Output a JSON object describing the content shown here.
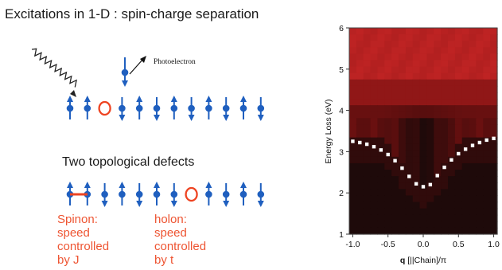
{
  "title": "Excitations in 1-D : spin-charge separation",
  "photo_label": "Photoelectron",
  "subtitle": "Two topological defects",
  "spinon_label": [
    "Spinon:",
    "speed",
    "controlled",
    "by J"
  ],
  "holon_label": [
    "holon:",
    "speed",
    "controlled",
    "by t"
  ],
  "colors": {
    "spin": "#1f5fbf",
    "defect": "#ee4422",
    "text_red": "#ee5533"
  },
  "chain_top": [
    "up",
    "up",
    "hole",
    "down",
    "up",
    "down",
    "up",
    "down",
    "up",
    "down",
    "up",
    "down"
  ],
  "chain_bottom": [
    "up",
    "up",
    "down",
    "up",
    "down",
    "up",
    "down",
    "hole",
    "up",
    "down",
    "up",
    "down"
  ],
  "chart_data": {
    "type": "heatmap",
    "title": "",
    "xlabel": "q [||Chain]/π",
    "ylabel": "Energy Loss (eV)",
    "xlim": [
      -1.05,
      1.05
    ],
    "ylim": [
      1,
      6
    ],
    "xticks": [
      "-1.0",
      "-0.5",
      "0.0",
      "0.5",
      "1.0"
    ],
    "yticks": [
      "1",
      "2",
      "3",
      "4",
      "5",
      "6"
    ],
    "dispersion_points": [
      {
        "x": -1.0,
        "y": 3.25
      },
      {
        "x": -0.9,
        "y": 3.22
      },
      {
        "x": -0.8,
        "y": 3.18
      },
      {
        "x": -0.7,
        "y": 3.12
      },
      {
        "x": -0.6,
        "y": 3.04
      },
      {
        "x": -0.5,
        "y": 2.93
      },
      {
        "x": -0.4,
        "y": 2.78
      },
      {
        "x": -0.3,
        "y": 2.6
      },
      {
        "x": -0.2,
        "y": 2.4
      },
      {
        "x": -0.1,
        "y": 2.22
      },
      {
        "x": 0.0,
        "y": 2.15
      },
      {
        "x": 0.1,
        "y": 2.2
      },
      {
        "x": 0.2,
        "y": 2.42
      },
      {
        "x": 0.3,
        "y": 2.62
      },
      {
        "x": 0.4,
        "y": 2.8
      },
      {
        "x": 0.5,
        "y": 2.95
      },
      {
        "x": 0.6,
        "y": 3.06
      },
      {
        "x": 0.7,
        "y": 3.15
      },
      {
        "x": 0.8,
        "y": 3.22
      },
      {
        "x": 0.9,
        "y": 3.28
      },
      {
        "x": 1.0,
        "y": 3.32
      }
    ]
  }
}
